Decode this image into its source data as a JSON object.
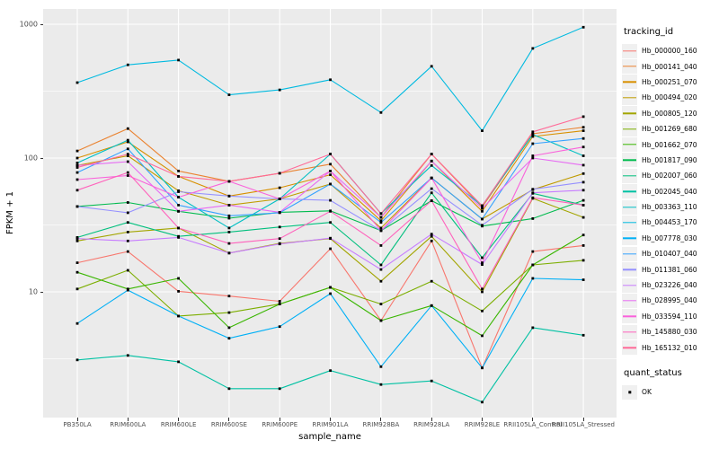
{
  "figure": {
    "y_axis_title": "FPKM + 1",
    "x_axis_title": "sample_name",
    "legend_tracking_title": "tracking_id",
    "legend_quant_title": "quant_status",
    "quant_ok_label": "OK"
  },
  "chart_data": {
    "type": "line",
    "title": "",
    "xlabel": "sample_name",
    "ylabel": "FPKM + 1",
    "log_y": true,
    "ylim": [
      1,
      1300
    ],
    "y_major_ticks": [
      1000,
      100,
      10
    ],
    "y_minor_ticks": [
      316,
      31.6,
      3.16
    ],
    "grid": true,
    "legend_position": "right",
    "point_shape": "filled-square",
    "point_color": "#000000",
    "panel_color": "#EBEBEB",
    "gridline_color": "#FFFFFF",
    "quant_status_value": "OK",
    "categories": [
      "PB350LA",
      "RRIM600LA",
      "RRIM600LE",
      "RRIM600SE",
      "RRIM600PE",
      "RRIM901LA",
      "RRIM928BA",
      "RRIM928LA",
      "RRIM928LE",
      "RRII105LA_Control",
      "RRII105LA_Stressed"
    ],
    "series": [
      {
        "name": "Hb_000000_160",
        "color": "#F8766D",
        "values": [
          16.5,
          20,
          10.1,
          9.3,
          8.5,
          21,
          6.1,
          24,
          2.7,
          20,
          22.2
        ]
      },
      {
        "name": "Hb_000141_040",
        "color": "#EA8331",
        "values": [
          113,
          166,
          80,
          67,
          77,
          90,
          36,
          107,
          43,
          152,
          170
        ]
      },
      {
        "name": "Hb_000251_070",
        "color": "#D89000",
        "values": [
          100,
          132,
          73,
          52,
          60,
          75,
          34,
          95,
          40,
          145,
          160
        ]
      },
      {
        "name": "Hb_000494_020",
        "color": "#C09B00",
        "values": [
          88,
          104,
          57,
          44.5,
          49.5,
          64,
          30,
          71,
          35,
          58,
          76.5
        ]
      },
      {
        "name": "Hb_000805_120",
        "color": "#A3A500",
        "values": [
          24,
          28,
          30,
          19.5,
          23,
          25,
          12,
          26,
          10,
          50,
          36
        ]
      },
      {
        "name": "Hb_001269_680",
        "color": "#7CAE00",
        "values": [
          10.5,
          14.5,
          6.6,
          7.0,
          8.1,
          10.8,
          8.1,
          12,
          7.2,
          15.9,
          17.2
        ]
      },
      {
        "name": "Hb_001662_070",
        "color": "#39B600",
        "values": [
          14,
          10.5,
          12.6,
          5.4,
          8.1,
          10.8,
          6.1,
          7.9,
          4.7,
          15.9,
          26.6
        ]
      },
      {
        "name": "Hb_001817_090",
        "color": "#00BB4E",
        "values": [
          43.5,
          46.5,
          40,
          35.5,
          39.3,
          40.3,
          28.7,
          48,
          31,
          35.3,
          48.3
        ]
      },
      {
        "name": "Hb_002007_060",
        "color": "#00BF7D",
        "values": [
          25.5,
          33,
          26,
          28,
          30.5,
          33,
          15.9,
          55,
          18,
          54.5,
          44.5
        ]
      },
      {
        "name": "Hb_002045_040",
        "color": "#00C1A3",
        "values": [
          3.1,
          3.35,
          3.0,
          1.89,
          1.89,
          2.58,
          2.03,
          2.16,
          1.5,
          5.4,
          4.74
        ]
      },
      {
        "name": "Hb_003363_110",
        "color": "#00BFC4",
        "values": [
          92,
          136,
          51,
          30,
          49.5,
          107,
          38.5,
          88,
          44,
          150,
          104
        ]
      },
      {
        "name": "Hb_004453_170",
        "color": "#00BAE0",
        "values": [
          366,
          497,
          540,
          297,
          323,
          385,
          219,
          485,
          160,
          660,
          950
        ]
      },
      {
        "name": "Hb_007778_030",
        "color": "#00B0F6",
        "values": [
          5.8,
          10.3,
          6.6,
          4.5,
          5.5,
          9.7,
          2.76,
          7.9,
          2.7,
          12.6,
          12.3
        ]
      },
      {
        "name": "Hb_010407_040",
        "color": "#35A2FF",
        "values": [
          78,
          117,
          44.5,
          37,
          39,
          64,
          33,
          71,
          35,
          128,
          140
        ]
      },
      {
        "name": "Hb_011381_060",
        "color": "#9590FF",
        "values": [
          43.5,
          39,
          56,
          52,
          49.5,
          48.3,
          28.7,
          59,
          31.5,
          58.5,
          66
        ]
      },
      {
        "name": "Hb_023226_040",
        "color": "#C77CFF",
        "values": [
          25,
          24,
          25.5,
          19.5,
          22.8,
          25.2,
          14.7,
          27,
          16,
          55,
          57.5
        ]
      },
      {
        "name": "Hb_028995_040",
        "color": "#E76BF3",
        "values": [
          88,
          94,
          40,
          44.5,
          39.3,
          80,
          36,
          95,
          42,
          100,
          88.5
        ]
      },
      {
        "name": "Hb_033594_110",
        "color": "#FA62DB",
        "values": [
          69,
          74,
          51,
          67,
          49.5,
          80,
          28.7,
          71,
          16.5,
          104,
          121
        ]
      },
      {
        "name": "Hb_145880_030",
        "color": "#FF62BC",
        "values": [
          57.5,
          78,
          30,
          23,
          25,
          40,
          22.2,
          48,
          10.5,
          50.5,
          44.5
        ]
      },
      {
        "name": "Hb_165132_010",
        "color": "#FF6A98",
        "values": [
          85,
          107,
          73,
          67,
          77,
          107,
          38.5,
          107,
          44,
          157,
          204
        ]
      }
    ]
  }
}
